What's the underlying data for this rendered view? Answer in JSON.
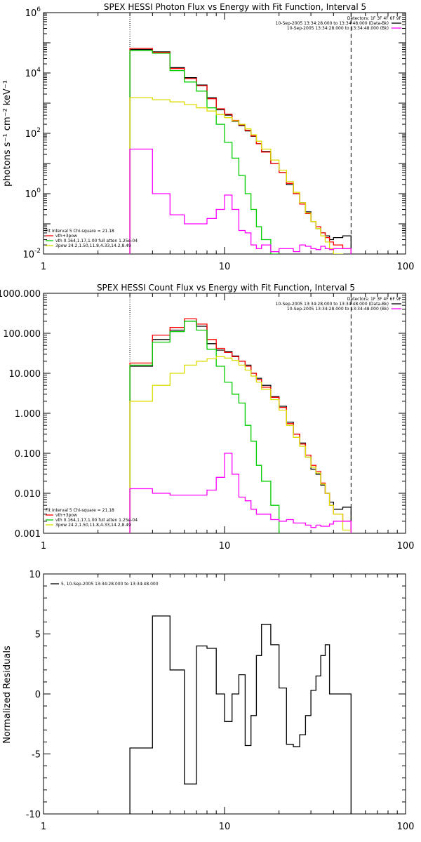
{
  "chart_data": [
    {
      "type": "line",
      "title": "SPEX HESSI Photon Flux vs Energy with Fit Function, Interval 5",
      "ylabel": "photons s⁻¹ cm⁻² keV⁻¹",
      "xlabel": "",
      "xscale": "log",
      "yscale": "log",
      "xlim": [
        1,
        100
      ],
      "ylim": [
        0.01,
        1000000
      ],
      "x_ticks": [
        "1",
        "10",
        "100"
      ],
      "y_ticks": [
        {
          "value": 0.01,
          "base": "10",
          "exp": "-2"
        },
        {
          "value": 1,
          "base": "10",
          "exp": "0"
        },
        {
          "value": 100,
          "base": "10",
          "exp": "2"
        },
        {
          "value": 10000,
          "base": "10",
          "exp": "4"
        },
        {
          "value": 1000000,
          "base": "10",
          "exp": "6"
        }
      ],
      "vlines": [
        {
          "x": 3,
          "style": "dotted"
        },
        {
          "x": 50,
          "style": "dashed"
        }
      ],
      "legend_topright": [
        {
          "text": "Detectors: 1F 3F 4F 6F 9F",
          "color": ""
        },
        {
          "text": "10-Sep-2005 13:34:28.000 to 13:34:48.000 (Data-Bk)",
          "color": "#000000"
        },
        {
          "text": "10-Sep-2005 13:34:28.000 to 13:34:48.000 (Bk)",
          "color": "#ff00ff"
        }
      ],
      "legend_bottomleft": [
        {
          "text": "Fit Interval 5   Chi-square = 21.18",
          "color": ""
        },
        {
          "text": "vth+3pow",
          "color": "#ff0000"
        },
        {
          "text": "vth 0.164,1.17,1.00  full atten 1.25e-04",
          "color": "#00cc00"
        },
        {
          "text": "3pow 24.2,1.50,11.8,4.33,14.2,8.49",
          "color": "#dddd00"
        }
      ],
      "series": [
        {
          "color": "#000000",
          "edges": [
            3,
            4,
            5,
            6,
            7,
            8,
            9,
            10,
            11,
            12,
            13,
            14,
            15,
            16,
            18,
            20,
            22,
            24,
            26,
            28,
            30,
            32,
            34,
            36,
            38,
            40,
            45,
            50
          ],
          "values": [
            60000,
            50000,
            15000,
            7000,
            4000,
            1500,
            600,
            400,
            250,
            180,
            120,
            80,
            45,
            25,
            10,
            5,
            2,
            1,
            0.5,
            0.25,
            0.12,
            0.07,
            0.05,
            0.04,
            0.03,
            0.035,
            0.04
          ]
        },
        {
          "color": "#ff0000",
          "edges": [
            3,
            4,
            5,
            6,
            7,
            8,
            9,
            10,
            11,
            12,
            13,
            14,
            15,
            16,
            18,
            20,
            22,
            24,
            26,
            28,
            30,
            32,
            34,
            36,
            38,
            40,
            45,
            50
          ],
          "values": [
            65000,
            48000,
            14000,
            6500,
            3800,
            1400,
            650,
            430,
            270,
            190,
            125,
            82,
            45,
            24,
            10,
            5,
            2.2,
            1,
            0.45,
            0.22,
            0.12,
            0.08,
            0.05,
            0.035,
            0.025,
            0.02,
            0.015
          ]
        },
        {
          "color": "#00cc00",
          "edges": [
            3,
            4,
            5,
            6,
            7,
            8,
            9,
            10,
            11,
            12,
            13,
            14,
            15,
            16,
            18,
            20
          ],
          "values": [
            55000,
            45000,
            12000,
            5000,
            2500,
            700,
            200,
            50,
            15,
            4,
            1,
            0.3,
            0.08,
            0.03,
            0.01
          ]
        },
        {
          "color": "#dddd00",
          "edges": [
            3,
            4,
            5,
            6,
            7,
            8,
            9,
            10,
            11,
            12,
            13,
            14,
            15,
            16,
            18,
            20,
            22,
            24,
            26,
            28,
            30,
            32,
            34,
            36,
            38,
            40,
            45,
            50
          ],
          "values": [
            1500,
            1300,
            1100,
            900,
            700,
            550,
            420,
            330,
            260,
            200,
            140,
            90,
            55,
            30,
            13,
            6,
            2.5,
            1.1,
            0.5,
            0.23,
            0.12,
            0.07,
            0.04,
            0.025,
            0.015,
            0.01,
            0.008
          ]
        },
        {
          "color": "#ff00ff",
          "edges": [
            3,
            4,
            5,
            6,
            7,
            8,
            9,
            10,
            11,
            12,
            13,
            14,
            15,
            16,
            18,
            20,
            22,
            24,
            26,
            28,
            30,
            32,
            34,
            36,
            38,
            40,
            45,
            50
          ],
          "values": [
            30,
            1,
            0.2,
            0.1,
            0.1,
            0.15,
            0.3,
            0.9,
            0.3,
            0.06,
            0.05,
            0.02,
            0.015,
            0.02,
            0.012,
            0.015,
            0.015,
            0.012,
            0.02,
            0.018,
            0.015,
            0.014,
            0.018,
            0.015,
            0.014,
            0.015,
            0.015
          ]
        }
      ]
    },
    {
      "type": "line",
      "title": "SPEX HESSI Count Flux vs Energy with Fit Function, Interval 5",
      "ylabel": "",
      "xlabel": "",
      "xscale": "log",
      "yscale": "log",
      "xlim": [
        1,
        100
      ],
      "ylim": [
        0.001,
        1000
      ],
      "x_ticks": [
        "1",
        "10",
        "100"
      ],
      "y_ticks": [
        {
          "value": 0.001,
          "text": "0.001"
        },
        {
          "value": 0.01,
          "text": "0.010"
        },
        {
          "value": 0.1,
          "text": "0.100"
        },
        {
          "value": 1,
          "text": "1.000"
        },
        {
          "value": 10,
          "text": "10.000"
        },
        {
          "value": 100,
          "text": "100.000"
        },
        {
          "value": 1000,
          "text": "1000.000"
        }
      ],
      "vlines": [
        {
          "x": 3,
          "style": "dotted"
        },
        {
          "x": 50,
          "style": "dashed"
        }
      ],
      "legend_topright": [
        {
          "text": "Detectors: 1F 3F 4F 6F 9F",
          "color": ""
        },
        {
          "text": "10-Sep-2005 13:34:28.000 to 13:34:48.000 (Data-Bk)",
          "color": "#000000"
        },
        {
          "text": "10-Sep-2005 13:34:28.000 to 13:34:48.000 (Bk)",
          "color": "#ff00ff"
        }
      ],
      "legend_bottomleft": [
        {
          "text": "Fit Interval 5   Chi-square = 21.18",
          "color": ""
        },
        {
          "text": "vth+3pow",
          "color": "#ff0000"
        },
        {
          "text": "vth 0.164,1.17,1.00  full atten 1.25e-04",
          "color": "#00cc00"
        },
        {
          "text": "3pow 24.2,1.50,11.8,4.33,14.2,8.49",
          "color": "#dddd00"
        }
      ],
      "series": [
        {
          "color": "#000000",
          "edges": [
            3,
            4,
            5,
            6,
            7,
            8,
            9,
            10,
            11,
            12,
            13,
            14,
            15,
            16,
            18,
            20,
            22,
            24,
            26,
            28,
            30,
            32,
            34,
            36,
            38,
            40,
            45,
            50
          ],
          "values": [
            15,
            70,
            120,
            200,
            150,
            55,
            38,
            35,
            27,
            20,
            16,
            10,
            7.5,
            5,
            2.6,
            1.5,
            0.6,
            0.3,
            0.18,
            0.08,
            0.04,
            0.03,
            0.016,
            0.01,
            0.006,
            0.004,
            0.0045
          ]
        },
        {
          "color": "#ff0000",
          "edges": [
            3,
            4,
            5,
            6,
            7,
            8,
            9,
            10,
            11,
            12,
            13,
            14,
            15,
            16,
            18,
            20,
            22,
            24,
            26,
            28,
            30,
            32,
            34,
            36,
            38,
            40,
            45,
            50
          ],
          "values": [
            18,
            90,
            140,
            230,
            170,
            70,
            42,
            33,
            26,
            20,
            15,
            10,
            7,
            4.5,
            2.5,
            1.4,
            0.55,
            0.3,
            0.17,
            0.09,
            0.05,
            0.035,
            0.018,
            0.01,
            0.005,
            0.003,
            0.002
          ]
        },
        {
          "color": "#00cc00",
          "edges": [
            3,
            4,
            5,
            6,
            7,
            8,
            9,
            10,
            11,
            12,
            13,
            14,
            15,
            16,
            18,
            20
          ],
          "values": [
            16,
            60,
            110,
            200,
            120,
            40,
            15,
            6,
            3,
            1.8,
            0.5,
            0.2,
            0.05,
            0.02,
            0.005,
            0.001
          ]
        },
        {
          "color": "#dddd00",
          "edges": [
            3,
            4,
            5,
            6,
            7,
            8,
            9,
            10,
            11,
            12,
            13,
            14,
            15,
            16,
            18,
            20,
            22,
            24,
            26,
            28,
            30,
            32,
            34,
            36,
            38,
            40,
            45,
            50
          ],
          "values": [
            2,
            5,
            10,
            16,
            20,
            23,
            26,
            24,
            21,
            16,
            12,
            8.5,
            6,
            4,
            2.2,
            1.2,
            0.5,
            0.25,
            0.15,
            0.08,
            0.045,
            0.032,
            0.017,
            0.01,
            0.005,
            0.003,
            0.0012
          ]
        },
        {
          "color": "#ff00ff",
          "edges": [
            3,
            4,
            5,
            6,
            7,
            8,
            9,
            10,
            11,
            12,
            13,
            14,
            15,
            16,
            18,
            20,
            22,
            24,
            26,
            28,
            30,
            32,
            34,
            36,
            38,
            40,
            45,
            50
          ],
          "values": [
            0.013,
            0.01,
            0.009,
            0.009,
            0.009,
            0.012,
            0.025,
            0.1,
            0.03,
            0.008,
            0.0065,
            0.004,
            0.003,
            0.003,
            0.0022,
            0.002,
            0.0022,
            0.0018,
            0.0018,
            0.0016,
            0.0014,
            0.0016,
            0.0015,
            0.0015,
            0.0017,
            0.002,
            0.002
          ]
        }
      ]
    },
    {
      "type": "line",
      "title": "",
      "ylabel": "Normalized Residuals",
      "xlabel": "",
      "xscale": "log",
      "yscale": "linear",
      "xlim": [
        1,
        100
      ],
      "ylim": [
        -10,
        10
      ],
      "x_ticks": [
        "1",
        "10",
        "100"
      ],
      "y_ticks": [
        {
          "value": -10,
          "text": "-10"
        },
        {
          "value": -5,
          "text": "-5"
        },
        {
          "value": 0,
          "text": "0"
        },
        {
          "value": 5,
          "text": "5"
        },
        {
          "value": 10,
          "text": "10"
        }
      ],
      "legend_topleft": [
        {
          "text": "5, 10-Sep-2005 13:34:28.000 to 13:34:48.000",
          "color": "#000000"
        }
      ],
      "series": [
        {
          "color": "#000000",
          "edges": [
            3,
            4,
            5,
            6,
            7,
            8,
            9,
            10,
            11,
            12,
            13,
            14,
            15,
            16,
            18,
            20,
            22,
            24,
            26,
            28,
            30,
            32,
            34,
            36,
            38,
            40,
            45,
            50
          ],
          "values": [
            -4.5,
            6.5,
            2,
            -7.5,
            4,
            3.8,
            0,
            -2.3,
            0,
            1.6,
            -4.3,
            -1.8,
            3.2,
            5.8,
            4.1,
            0.5,
            -4.2,
            -4.4,
            -3.4,
            -1.8,
            0.3,
            1.5,
            3.2,
            4.1,
            0,
            0,
            0
          ],
          "draw_until": 50
        }
      ]
    }
  ]
}
